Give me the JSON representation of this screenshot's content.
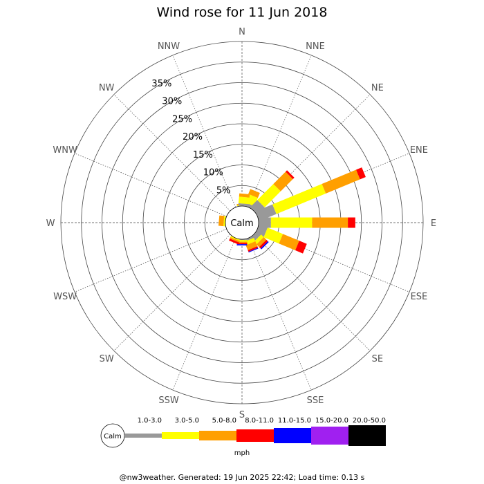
{
  "chart_data": {
    "type": "windrose",
    "title": "Wind rose for 11 Jun 2018",
    "calm_label": "Calm",
    "directions": [
      "N",
      "NNE",
      "NE",
      "ENE",
      "E",
      "ESE",
      "SE",
      "SSE",
      "S",
      "SSW",
      "SW",
      "WSW",
      "W",
      "WNW",
      "NW",
      "NNW"
    ],
    "radial_ticks": [
      "5%",
      "10%",
      "15%",
      "20%",
      "25%",
      "30%",
      "35%"
    ],
    "radial_max": 40,
    "speed_bins": [
      {
        "label": "1.0-3.0",
        "color": "#999999"
      },
      {
        "label": "3.0-5.0",
        "color": "#ffff00"
      },
      {
        "label": "5.0-8.0",
        "color": "#ff9f00"
      },
      {
        "label": "8.0-11.0",
        "color": "#ff0000"
      },
      {
        "label": "11.0-15.0",
        "color": "#0000ff"
      },
      {
        "label": "15.0-20.0",
        "color": "#a020f0"
      },
      {
        "label": "20.0-50.0",
        "color": "#000000"
      }
    ],
    "units": "mph",
    "series": [
      {
        "direction": "N",
        "values": [
          0,
          0.2,
          0.3,
          0,
          0,
          0,
          0
        ]
      },
      {
        "direction": "NNE",
        "values": [
          0.8,
          2.2,
          1.3,
          0,
          0,
          0,
          0
        ]
      },
      {
        "direction": "NE",
        "values": [
          2.5,
          5.5,
          4.2,
          0.5,
          0,
          0,
          0
        ]
      },
      {
        "direction": "ENE",
        "values": [
          4.5,
          13.0,
          9.0,
          1.5,
          0,
          0,
          0
        ]
      },
      {
        "direction": "E",
        "values": [
          3.0,
          10.0,
          8.7,
          1.8,
          0,
          0,
          0
        ]
      },
      {
        "direction": "ESE",
        "values": [
          2.2,
          4.0,
          4.3,
          2.0,
          0,
          0,
          0
        ]
      },
      {
        "direction": "SE",
        "values": [
          1.3,
          0.9,
          0.9,
          0.5,
          0.3,
          0,
          0
        ]
      },
      {
        "direction": "SSE",
        "values": [
          0.5,
          0.9,
          1.3,
          0.4,
          0.2,
          0,
          0
        ]
      },
      {
        "direction": "S",
        "values": [
          0.2,
          0.4,
          0.3,
          0.3,
          0.3,
          0,
          0
        ]
      },
      {
        "direction": "SSW",
        "values": [
          0,
          0.3,
          0.4,
          0.5,
          0,
          0,
          0
        ]
      },
      {
        "direction": "SW",
        "values": [
          0,
          0,
          0,
          0,
          0,
          0,
          0
        ]
      },
      {
        "direction": "WSW",
        "values": [
          0,
          0,
          0,
          0,
          0,
          0,
          0
        ]
      },
      {
        "direction": "W",
        "values": [
          0,
          0,
          0,
          0,
          0,
          0,
          0
        ]
      },
      {
        "direction": "WNW",
        "values": [
          0,
          0,
          0,
          0,
          0,
          0,
          0
        ]
      },
      {
        "direction": "NW",
        "values": [
          0,
          0,
          0,
          0,
          0,
          0,
          0
        ]
      },
      {
        "direction": "NNW",
        "values": [
          0,
          0,
          0,
          0,
          0,
          0,
          0
        ]
      }
    ],
    "extra_wedges": [
      {
        "angle_deg": 5,
        "values": [
          0.6,
          1.6,
          0.8,
          0,
          0,
          0,
          0
        ]
      },
      {
        "angle_deg": 275,
        "values": [
          0,
          0.4,
          1.2,
          0,
          0,
          0,
          0
        ]
      }
    ]
  },
  "footer": "@nw3weather. Generated: 19 Jun 2025 22:42; Load time: 0.13 s"
}
